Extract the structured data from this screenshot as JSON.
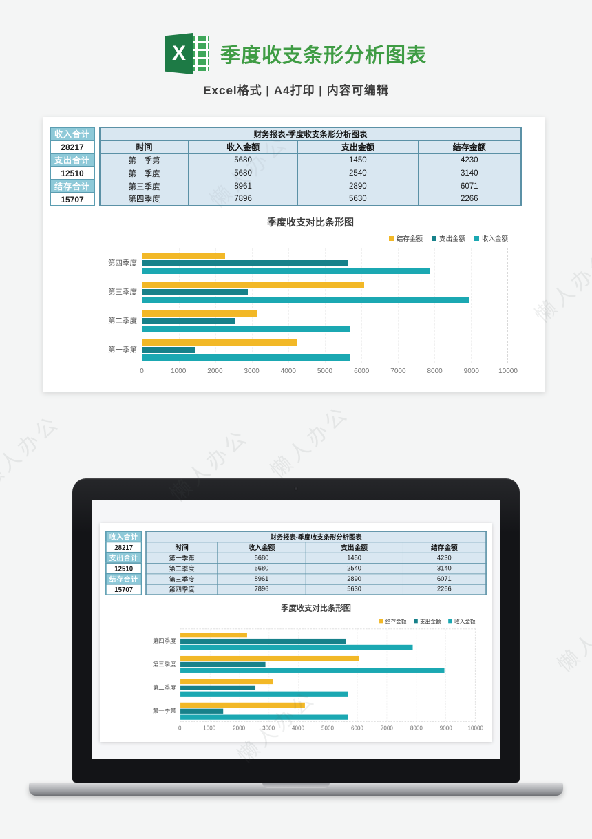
{
  "header": {
    "title": "季度收支条形分析图表",
    "subtitle": "Excel格式   |   A4打印   |   内容可编辑",
    "title_color": "#3f9c44",
    "icon": "excel-logo",
    "icon_letter": "X"
  },
  "watermark_text": "懒人办公",
  "sheet": {
    "side": [
      {
        "label": "收入合计",
        "value": "28217"
      },
      {
        "label": "支出合计",
        "value": "12510"
      },
      {
        "label": "结存合计",
        "value": "15707"
      }
    ],
    "table": {
      "title": "财务报表-季度收支条形分析图表",
      "headers": [
        "时间",
        "收入金额",
        "支出金额",
        "结存金额"
      ],
      "rows": [
        [
          "第一季第",
          "5680",
          "1450",
          "4230"
        ],
        [
          "第二季度",
          "5680",
          "2540",
          "3140"
        ],
        [
          "第三季度",
          "8961",
          "2890",
          "6071"
        ],
        [
          "第四季度",
          "7896",
          "5630",
          "2266"
        ]
      ]
    }
  },
  "chart_data": {
    "type": "bar",
    "orientation": "horizontal",
    "title": "季度收支对比条形图",
    "categories": [
      "第四季度",
      "第三季度",
      "第二季度",
      "第一季第"
    ],
    "series": [
      {
        "name": "结存金额",
        "color": "#F2B827",
        "values": [
          2266,
          6071,
          3140,
          4230
        ]
      },
      {
        "name": "支出金额",
        "color": "#17818A",
        "values": [
          5630,
          2890,
          2540,
          1450
        ]
      },
      {
        "name": "收入金额",
        "color": "#1BA8B2",
        "values": [
          7896,
          8961,
          5680,
          5680
        ]
      }
    ],
    "xlabel": "",
    "ylabel": "",
    "xlim": [
      0,
      10000
    ],
    "x_ticks": [
      0,
      1000,
      2000,
      3000,
      4000,
      5000,
      6000,
      7000,
      8000,
      9000,
      10000
    ],
    "legend_position": "top-right",
    "grid": "dashed-vertical"
  },
  "table_colors": {
    "cell_bg": "#d9e7f1",
    "border": "#5b91a6",
    "sidebar_bg": "#8ec9d8"
  }
}
